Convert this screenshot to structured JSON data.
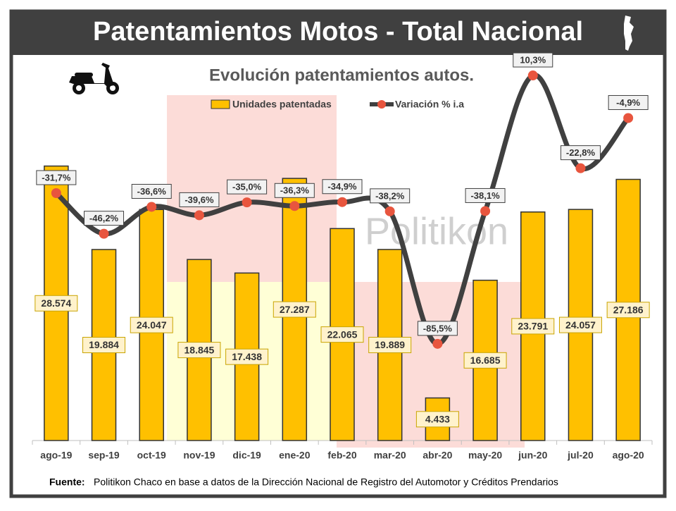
{
  "chart_data": {
    "type": "bar_line",
    "title": "Patentamientos Motos - Total Nacional",
    "subtitle": "Evolución patentamientos autos.",
    "watermark": "Politikon",
    "source_label": "Fuente:",
    "source": "Politikon Chaco en base a datos de la Dirección Nacional de Registro del Automotor y Créditos Prendarios",
    "categories": [
      "ago-19",
      "sep-19",
      "oct-19",
      "nov-19",
      "dic-19",
      "ene-20",
      "feb-20",
      "mar-20",
      "abr-20",
      "may-20",
      "jun-20",
      "jul-20",
      "ago-20"
    ],
    "ylim": [
      0,
      35000
    ],
    "y2lim": [
      -120,
      0
    ],
    "legend": "top",
    "series": [
      {
        "name": "Unidades patentadas",
        "type": "bar",
        "color": "#ffc000",
        "values": [
          28574,
          19884,
          24047,
          18845,
          17438,
          27287,
          22065,
          19889,
          4433,
          16685,
          23791,
          24057,
          27186
        ],
        "value_labels": [
          "28.574",
          "19.884",
          "24.047",
          "18.845",
          "17.438",
          "27.287",
          "22.065",
          "19.889",
          "4.433",
          "16.685",
          "23.791",
          "24.057",
          "27.186"
        ]
      },
      {
        "name": "Variación % i.a",
        "type": "line",
        "axis": "y2",
        "color": "#404040",
        "marker_color": "#e8553e",
        "values": [
          -31.7,
          -46.2,
          -36.6,
          -39.6,
          -35.0,
          -36.3,
          -34.9,
          -38.2,
          -85.5,
          -38.1,
          10.3,
          -22.8,
          -4.9
        ],
        "value_labels": [
          "-31,7%",
          "-46,2%",
          "-36,6%",
          "-39,6%",
          "-35,0%",
          "-36,3%",
          "-34,9%",
          "-38,2%",
          "-85,5%",
          "-38,1%",
          "10,3%",
          "-22,8%",
          "-4,9%"
        ]
      }
    ]
  }
}
